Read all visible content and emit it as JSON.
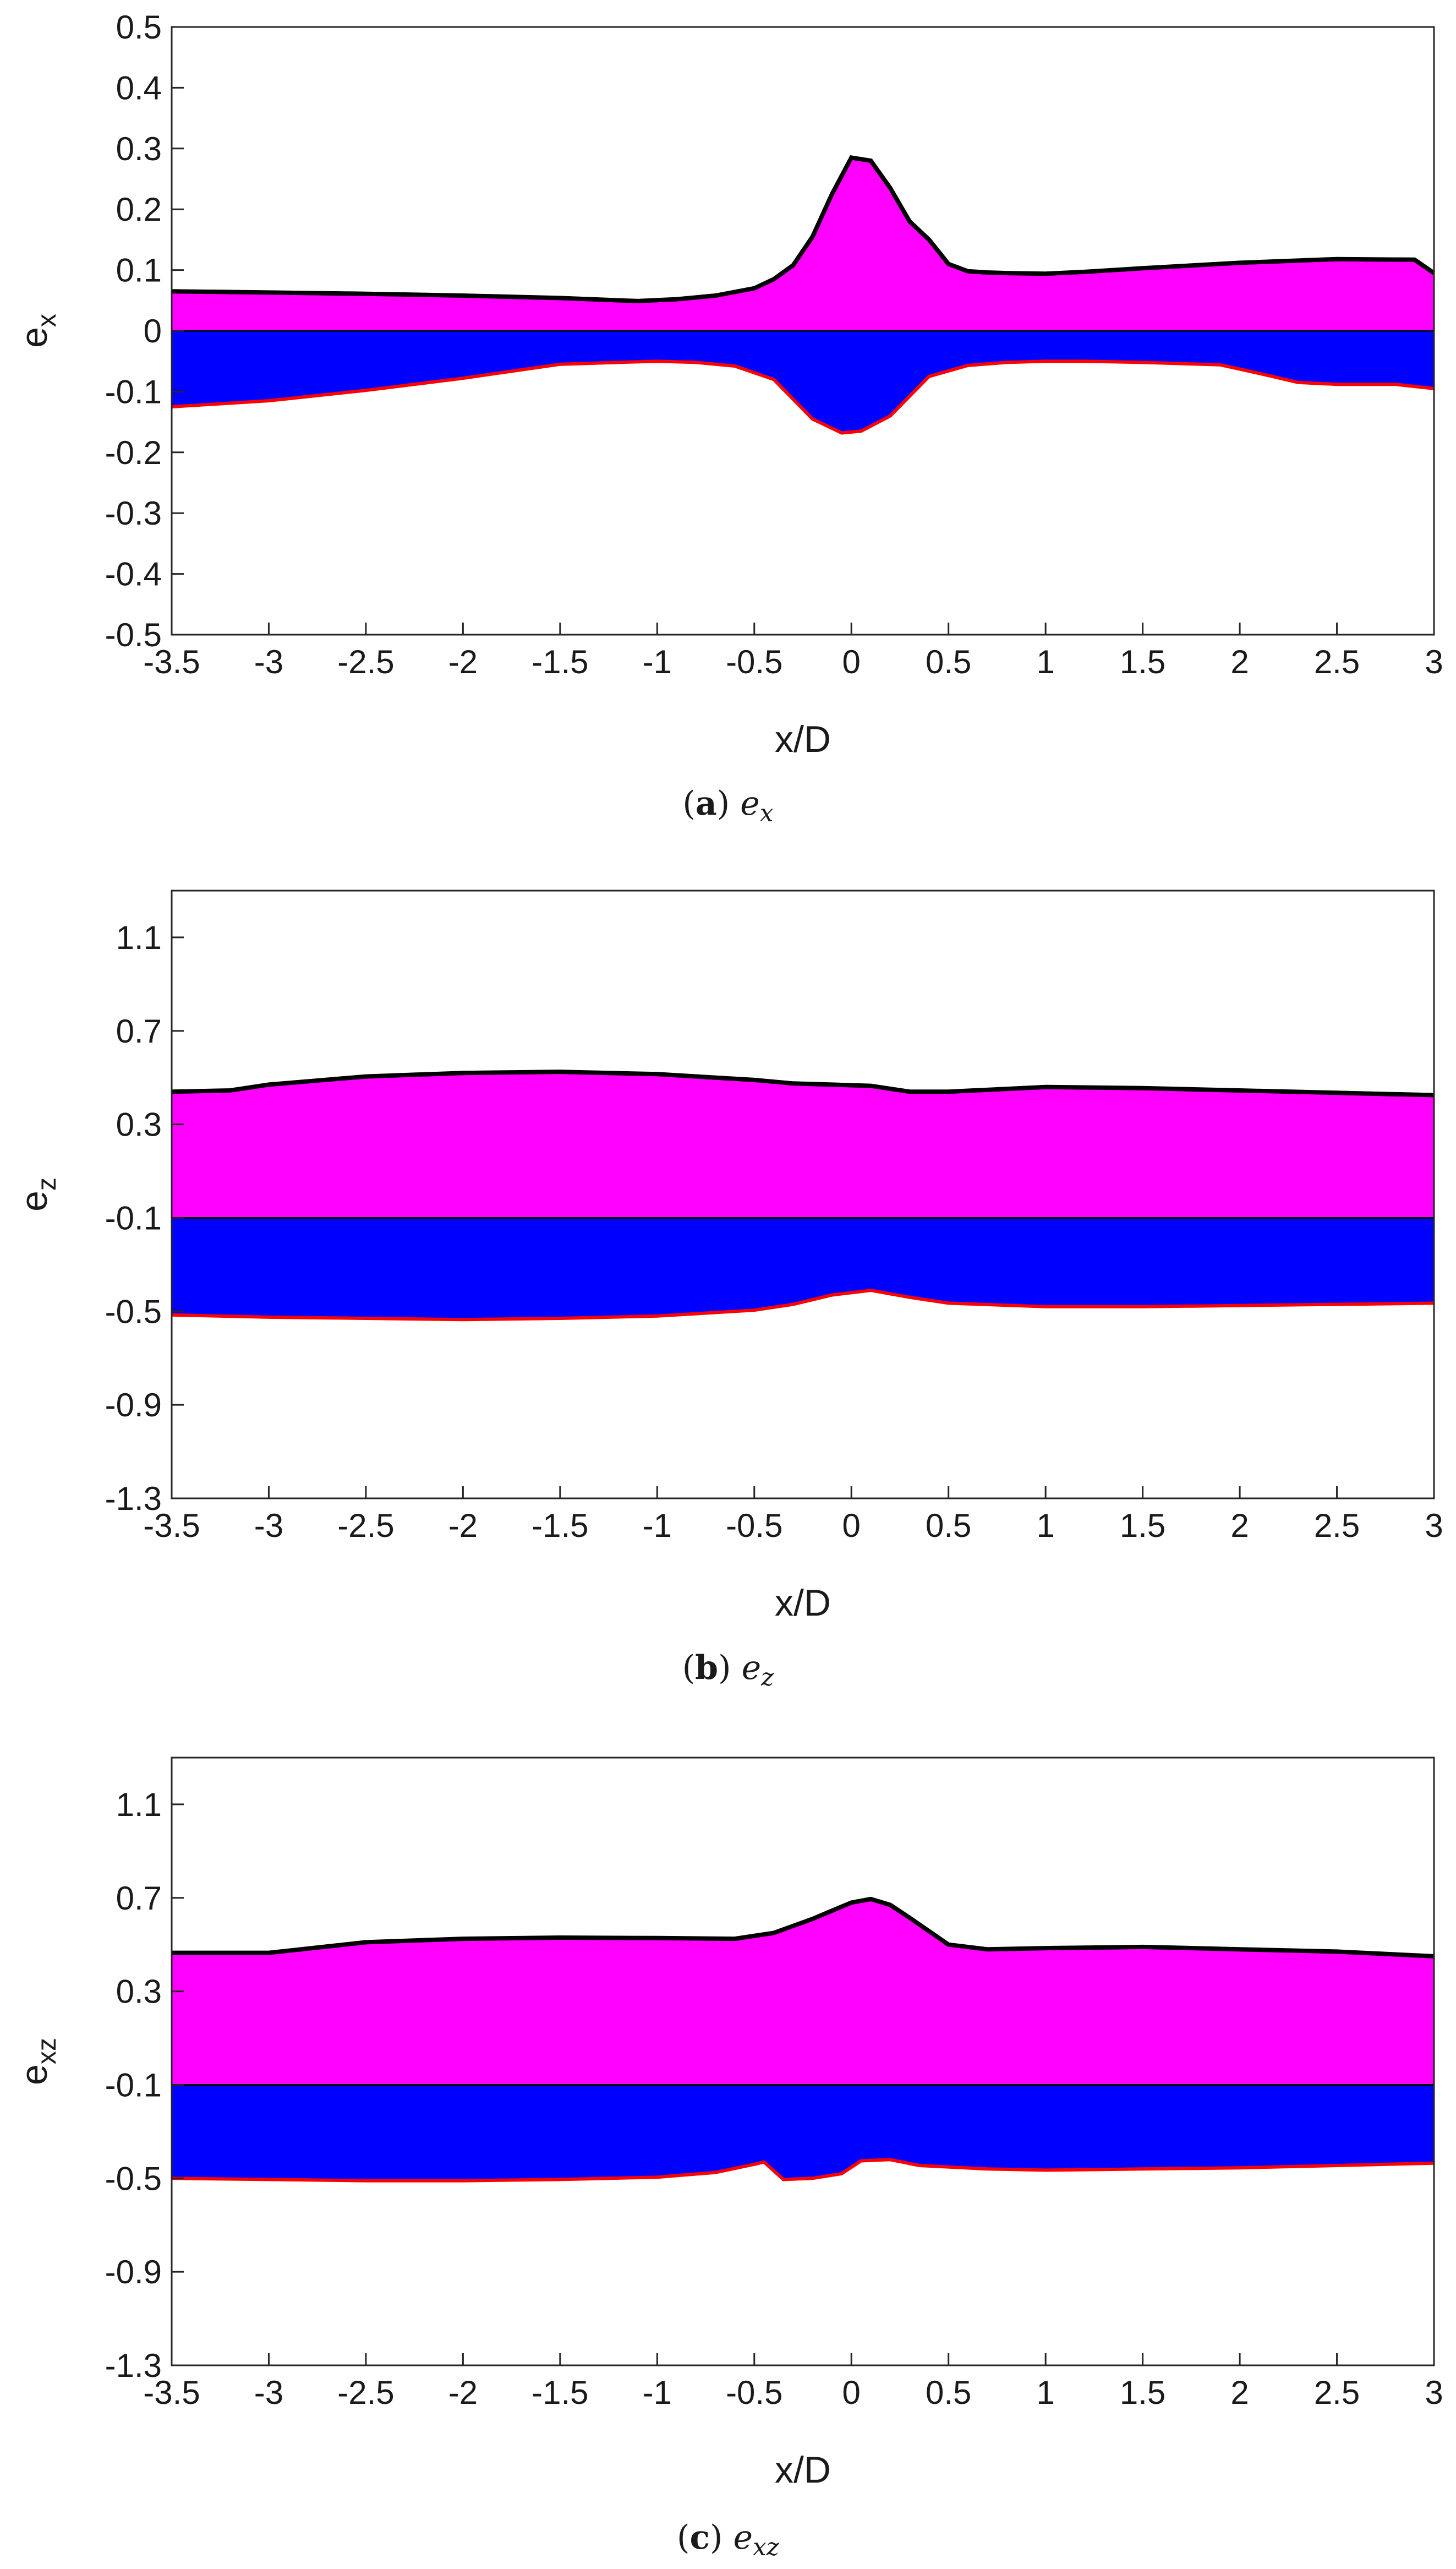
{
  "colors": {
    "positive": "#ff00ff",
    "negative": "#0000ff",
    "upper_line": "#000000",
    "lower_line": "#ff0000"
  },
  "chart_data": [
    {
      "type": "area",
      "id": "a",
      "caption_letter": "a",
      "caption_symbol": "e",
      "caption_subscript": "x",
      "xlabel": "x/D",
      "ylabel": "e",
      "ylabel_subscript": "x",
      "xlim": [
        -3.5,
        3
      ],
      "ylim": [
        -0.5,
        0.5
      ],
      "xticks": [
        "-3.5",
        "-3",
        "-2.5",
        "-2",
        "-1.5",
        "-1",
        "-0.5",
        "0",
        "0.5",
        "1",
        "1.5",
        "2",
        "2.5",
        "3"
      ],
      "yticks": [
        "0.5",
        "0.4",
        "0.3",
        "0.2",
        "0.1",
        "0",
        "-0.1",
        "-0.2",
        "-0.3",
        "-0.4",
        "-0.5"
      ],
      "series": [
        {
          "name": "upper",
          "x": [
            -3.5,
            -3,
            -2.5,
            -2,
            -1.5,
            -1.1,
            -0.9,
            -0.7,
            -0.5,
            -0.4,
            -0.3,
            -0.2,
            -0.1,
            0,
            0.1,
            0.2,
            0.3,
            0.4,
            0.5,
            0.6,
            0.7,
            0.8,
            1,
            1.2,
            1.5,
            2,
            2.5,
            2.9,
            3
          ],
          "y": [
            0.065,
            0.063,
            0.061,
            0.058,
            0.054,
            0.049,
            0.052,
            0.058,
            0.07,
            0.085,
            0.108,
            0.155,
            0.225,
            0.285,
            0.28,
            0.235,
            0.18,
            0.15,
            0.11,
            0.098,
            0.096,
            0.095,
            0.094,
            0.097,
            0.103,
            0.112,
            0.118,
            0.117,
            0.095
          ]
        },
        {
          "name": "lower",
          "x": [
            -3.5,
            -3,
            -2.5,
            -2,
            -1.5,
            -1,
            -0.8,
            -0.6,
            -0.4,
            -0.2,
            -0.05,
            0.05,
            0.2,
            0.4,
            0.6,
            0.8,
            1,
            1.2,
            1.5,
            1.9,
            2.1,
            2.3,
            2.5,
            2.8,
            3
          ],
          "y": [
            -0.125,
            -0.115,
            -0.098,
            -0.078,
            -0.055,
            -0.05,
            -0.052,
            -0.058,
            -0.08,
            -0.145,
            -0.168,
            -0.165,
            -0.14,
            -0.075,
            -0.057,
            -0.052,
            -0.05,
            -0.05,
            -0.052,
            -0.056,
            -0.07,
            -0.085,
            -0.088,
            -0.088,
            -0.095
          ]
        }
      ]
    },
    {
      "type": "area",
      "id": "b",
      "caption_letter": "b",
      "caption_symbol": "e",
      "caption_subscript": "z",
      "xlabel": "x/D",
      "ylabel": "e",
      "ylabel_subscript": "z",
      "xlim": [
        -3.5,
        3
      ],
      "ylim": [
        -1.3,
        1.3
      ],
      "baseline": -0.1,
      "xticks": [
        "-3.5",
        "-3",
        "-2.5",
        "-2",
        "-1.5",
        "-1",
        "-0.5",
        "0",
        "0.5",
        "1",
        "1.5",
        "2",
        "2.5",
        "3"
      ],
      "yticks": [
        "1.1",
        "0.7",
        "0.3",
        "-0.1",
        "-0.5",
        "-0.9",
        "-1.3"
      ],
      "series": [
        {
          "name": "upper",
          "x": [
            -3.5,
            -3.2,
            -3,
            -2.5,
            -2,
            -1.5,
            -1,
            -0.5,
            -0.3,
            -0.1,
            0.1,
            0.3,
            0.5,
            1,
            1.5,
            2,
            2.5,
            3
          ],
          "y": [
            0.44,
            0.445,
            0.47,
            0.505,
            0.52,
            0.525,
            0.515,
            0.49,
            0.475,
            0.47,
            0.465,
            0.44,
            0.44,
            0.46,
            0.455,
            0.445,
            0.435,
            0.425
          ]
        },
        {
          "name": "lower",
          "x": [
            -3.5,
            -3,
            -2.5,
            -2,
            -1.5,
            -1,
            -0.5,
            -0.3,
            -0.1,
            0.1,
            0.3,
            0.5,
            1,
            1.5,
            2,
            2.5,
            3
          ],
          "y": [
            -0.515,
            -0.525,
            -0.53,
            -0.535,
            -0.53,
            -0.52,
            -0.495,
            -0.47,
            -0.43,
            -0.41,
            -0.44,
            -0.465,
            -0.48,
            -0.48,
            -0.475,
            -0.47,
            -0.465
          ]
        }
      ]
    },
    {
      "type": "area",
      "id": "c",
      "caption_letter": "c",
      "caption_symbol": "e",
      "caption_subscript": "xz",
      "xlabel": "x/D",
      "ylabel": "e",
      "ylabel_subscript": "xz",
      "xlim": [
        -3.5,
        3
      ],
      "ylim": [
        -1.3,
        1.3
      ],
      "baseline": -0.1,
      "xticks": [
        "-3.5",
        "-3",
        "-2.5",
        "-2",
        "-1.5",
        "-1",
        "-0.5",
        "0",
        "0.5",
        "1",
        "1.5",
        "2",
        "2.5",
        "3"
      ],
      "yticks": [
        "1.1",
        "0.7",
        "0.3",
        "-0.1",
        "-0.5",
        "-0.9",
        "-1.3"
      ],
      "series": [
        {
          "name": "upper",
          "x": [
            -3.5,
            -3,
            -2.5,
            -2,
            -1.5,
            -1,
            -0.6,
            -0.4,
            -0.2,
            0,
            0.1,
            0.2,
            0.3,
            0.5,
            0.7,
            1,
            1.5,
            2,
            2.5,
            3
          ],
          "y": [
            0.465,
            0.465,
            0.51,
            0.525,
            0.53,
            0.528,
            0.525,
            0.55,
            0.61,
            0.68,
            0.695,
            0.67,
            0.615,
            0.5,
            0.48,
            0.485,
            0.49,
            0.48,
            0.47,
            0.45
          ]
        },
        {
          "name": "lower",
          "x": [
            -3.5,
            -3,
            -2.5,
            -2,
            -1.5,
            -1,
            -0.7,
            -0.5,
            -0.45,
            -0.35,
            -0.2,
            -0.05,
            0.05,
            0.2,
            0.35,
            0.7,
            1,
            1.5,
            2,
            2.5,
            3
          ],
          "y": [
            -0.5,
            -0.505,
            -0.51,
            -0.51,
            -0.505,
            -0.495,
            -0.475,
            -0.44,
            -0.43,
            -0.505,
            -0.5,
            -0.48,
            -0.425,
            -0.42,
            -0.445,
            -0.46,
            -0.465,
            -0.46,
            -0.455,
            -0.445,
            -0.435
          ]
        }
      ]
    }
  ]
}
